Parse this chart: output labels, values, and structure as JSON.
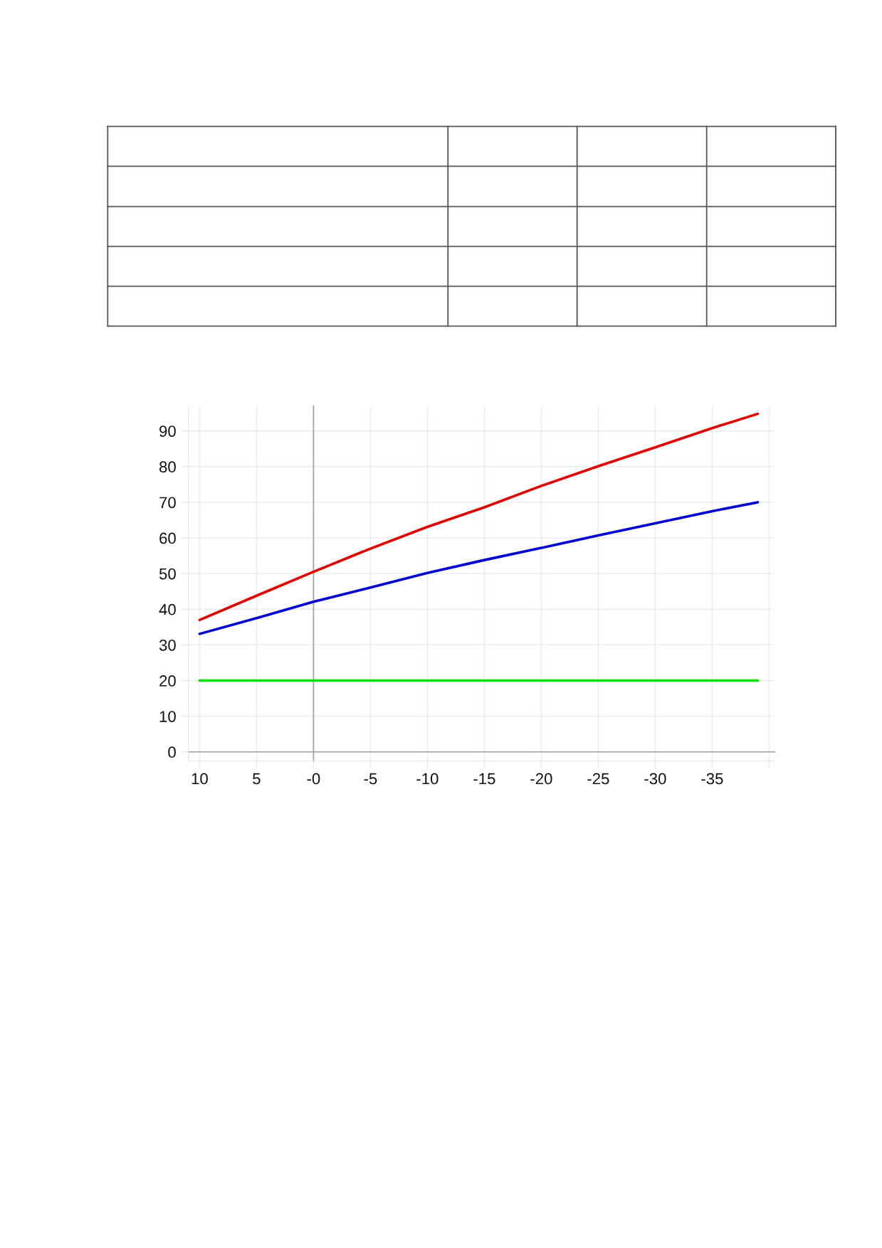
{
  "chart_data": {
    "type": "line",
    "x": [
      10,
      5,
      0,
      -5,
      -10,
      -15,
      -20,
      -25,
      -30,
      -35,
      -39
    ],
    "series": [
      {
        "color": "#e00000",
        "values": [
          37.0,
          43.8,
          50.5,
          57.0,
          63.1,
          68.6,
          74.6,
          80.1,
          85.4,
          90.8,
          94.8
        ]
      },
      {
        "color": "#0000d0",
        "values": [
          33.1,
          37.5,
          42.1,
          46.1,
          50.2,
          53.8,
          57.2,
          60.7,
          64.1,
          67.5,
          70.0
        ]
      },
      {
        "color": "#00e000",
        "values": [
          20,
          20,
          20,
          20,
          20,
          20,
          20,
          20,
          20,
          20,
          20
        ]
      }
    ],
    "xlim": [
      11,
      -40.5
    ],
    "ylim": [
      -2.5,
      97
    ],
    "xticks": [
      10,
      5,
      {
        "value": 0,
        "label": "-0"
      },
      -5,
      -10,
      -15,
      -20,
      -25,
      -30,
      -35,
      {
        "value": -40,
        "label": null
      }
    ],
    "yticks": [
      0,
      10,
      20,
      30,
      40,
      50,
      60,
      70,
      80,
      90
    ],
    "grid": true
  }
}
